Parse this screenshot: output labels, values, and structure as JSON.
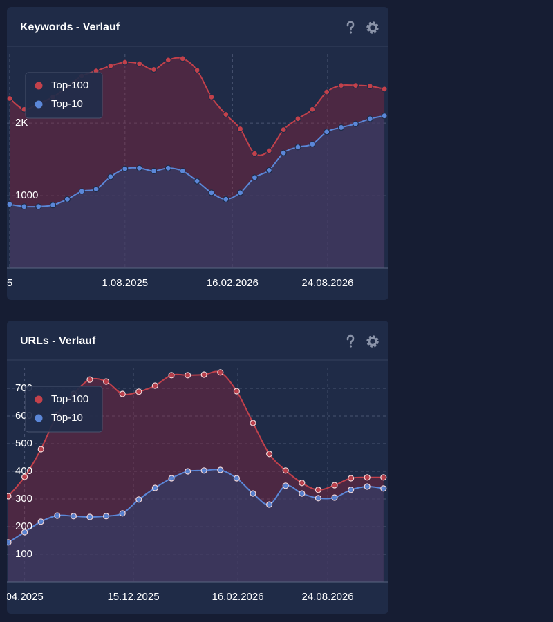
{
  "chart_data": [
    {
      "type": "line",
      "title": "Keywords - Verlauf",
      "categories": [
        null,
        null,
        null,
        null,
        null,
        null,
        null,
        null,
        null,
        null,
        null,
        null,
        null,
        null,
        null,
        null,
        null,
        null,
        null,
        null,
        null,
        null,
        null,
        null,
        null,
        null,
        null
      ],
      "series": [
        {
          "name": "Top-100",
          "color": "#c2414b",
          "values": [
            2340,
            2190,
            2270,
            2360,
            2500,
            2650,
            2720,
            2790,
            2840,
            2820,
            2740,
            2870,
            2890,
            2730,
            2360,
            2120,
            1920,
            1580,
            1620,
            1910,
            2060,
            2190,
            2430,
            2520,
            2520,
            2510,
            2470
          ]
        },
        {
          "name": "Top-10",
          "color": "#5b87d8",
          "values": [
            880,
            850,
            850,
            870,
            950,
            1060,
            1090,
            1260,
            1370,
            1380,
            1340,
            1380,
            1340,
            1200,
            1040,
            950,
            1040,
            1250,
            1350,
            1590,
            1670,
            1710,
            1880,
            1940,
            1990,
            2060,
            2100
          ]
        }
      ],
      "ylim": [
        0,
        3050
      ],
      "yticks": [
        1000,
        {
          "value": 2000,
          "label": "2K"
        }
      ],
      "xticks": [
        {
          "value": 0,
          "label": "5"
        },
        {
          "value": 8,
          "label": "1.08.2025"
        },
        {
          "value": 15.46,
          "label": "16.02.2026"
        },
        {
          "value": 22.06,
          "label": "24.08.2026"
        }
      ],
      "grid": true,
      "legend": "upper left"
    },
    {
      "type": "line",
      "title": "URLs - Verlauf",
      "categories": [
        null,
        null,
        null,
        null,
        null,
        null,
        null,
        null,
        null,
        null,
        null,
        null,
        null,
        null,
        null,
        null,
        null,
        null,
        null,
        null,
        null,
        null,
        null,
        null
      ],
      "series": [
        {
          "name": "Top-100",
          "color": "#c2414b",
          "values": [
            310,
            380,
            480,
            605,
            680,
            732,
            725,
            680,
            688,
            710,
            748,
            748,
            750,
            758,
            690,
            575,
            463,
            403,
            358,
            333,
            350,
            375,
            378,
            378
          ]
        },
        {
          "name": "Top-10",
          "color": "#5b87d8",
          "values": [
            143,
            180,
            218,
            240,
            238,
            235,
            238,
            248,
            298,
            340,
            375,
            400,
            403,
            405,
            375,
            320,
            280,
            348,
            320,
            303,
            305,
            333,
            345,
            338
          ]
        }
      ],
      "ylim": [
        0,
        800
      ],
      "yticks": [
        100,
        200,
        300,
        400,
        500,
        600,
        700
      ],
      "xticks": [
        {
          "value": 1,
          "label": "04.2025"
        },
        {
          "value": 7.67,
          "label": "15.12.2025"
        },
        {
          "value": 14.07,
          "label": "16.02.2026"
        },
        {
          "value": 19.58,
          "label": "24.08.2026"
        }
      ],
      "grid": true,
      "legend": "upper left"
    }
  ]
}
